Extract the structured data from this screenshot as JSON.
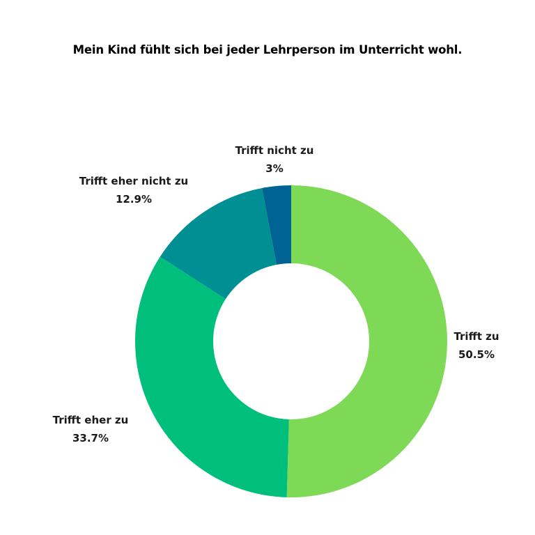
{
  "chart_data": {
    "type": "pie",
    "variant": "donut",
    "title": "Mein Kind fühlt sich bei jeder Lehrperson im Unterricht wohl.",
    "slices": [
      {
        "label": "Trifft zu",
        "value": 50.5,
        "value_label": "50.5%",
        "color": "#7ed957"
      },
      {
        "label": "Trifft eher zu",
        "value": 33.7,
        "value_label": "33.7%",
        "color": "#00bf7c"
      },
      {
        "label": "Trifft eher nicht zu",
        "value": 12.9,
        "value_label": "12.9%",
        "color": "#008f93"
      },
      {
        "label": "Trifft nicht zu",
        "value": 3,
        "value_label": "3%",
        "color": "#006394"
      }
    ],
    "start_angle": "12 o'clock",
    "direction": "clockwise",
    "legend": "none",
    "labels_position": "outside"
  }
}
